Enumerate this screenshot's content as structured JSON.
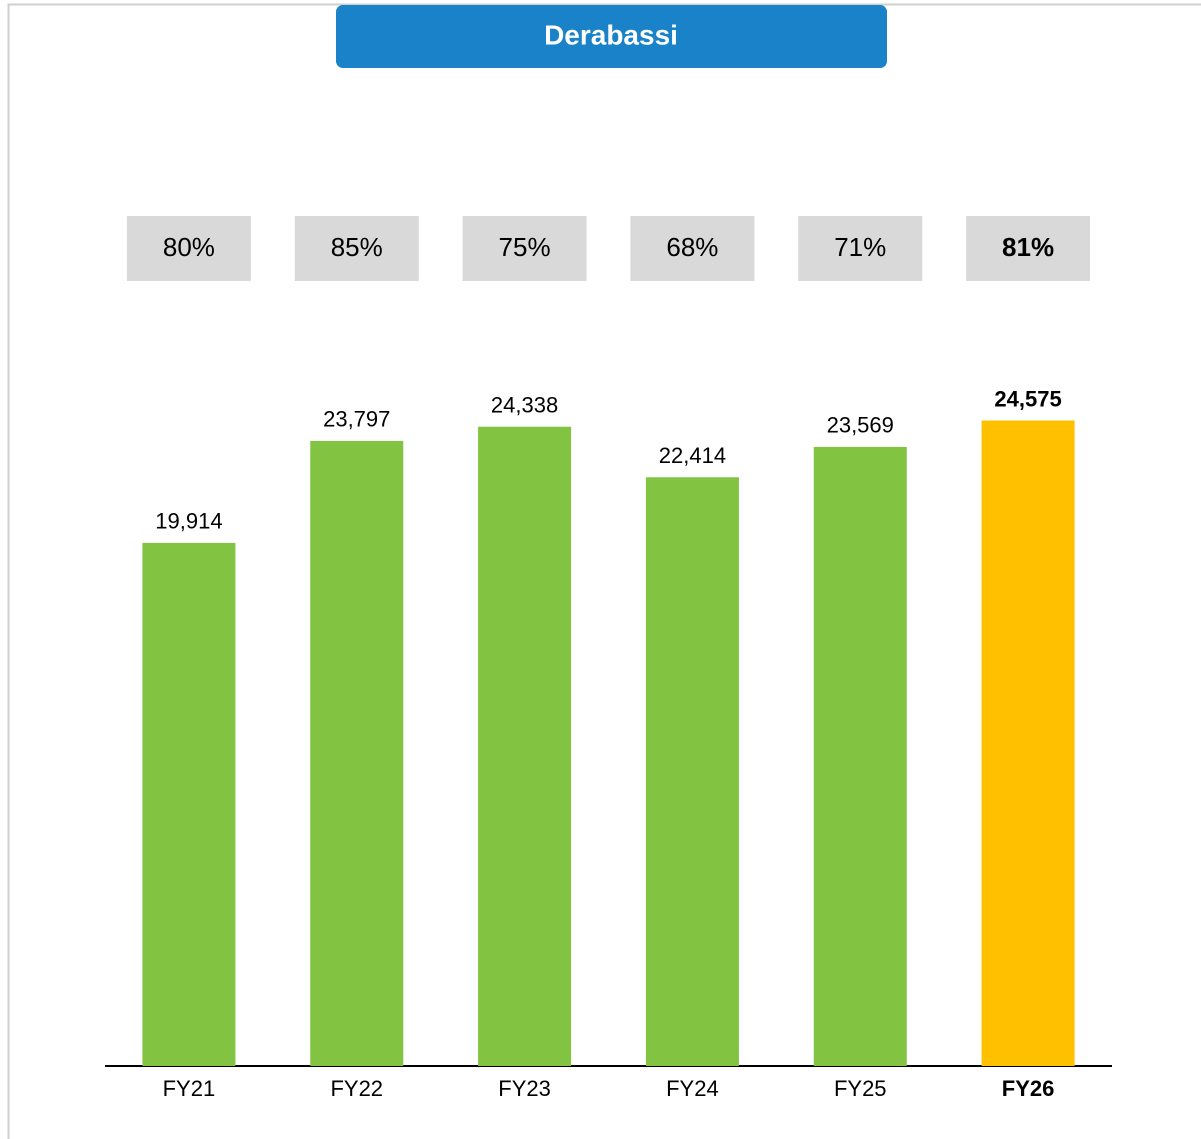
{
  "chart_data": {
    "type": "bar",
    "title": "Derabassi",
    "categories": [
      "FY21",
      "FY22",
      "FY23",
      "FY24",
      "FY25",
      "FY26"
    ],
    "values": [
      19914,
      23797,
      24338,
      22414,
      23569,
      24575
    ],
    "value_labels": [
      "19,914",
      "23,797",
      "24,338",
      "22,414",
      "23,569",
      "24,575"
    ],
    "colors": [
      "#82c341",
      "#82c341",
      "#82c341",
      "#82c341",
      "#82c341",
      "#ffc000"
    ],
    "bold": [
      false,
      false,
      false,
      false,
      false,
      true
    ],
    "ylim": [
      0,
      30000
    ],
    "shares": {
      "values": [
        80,
        85,
        75,
        68,
        71,
        81
      ],
      "value_labels": [
        "80%",
        "85%",
        "75%",
        "68%",
        "71%",
        "81%"
      ],
      "color": "#d9d9d9"
    },
    "title_color": "#1a82c8"
  }
}
